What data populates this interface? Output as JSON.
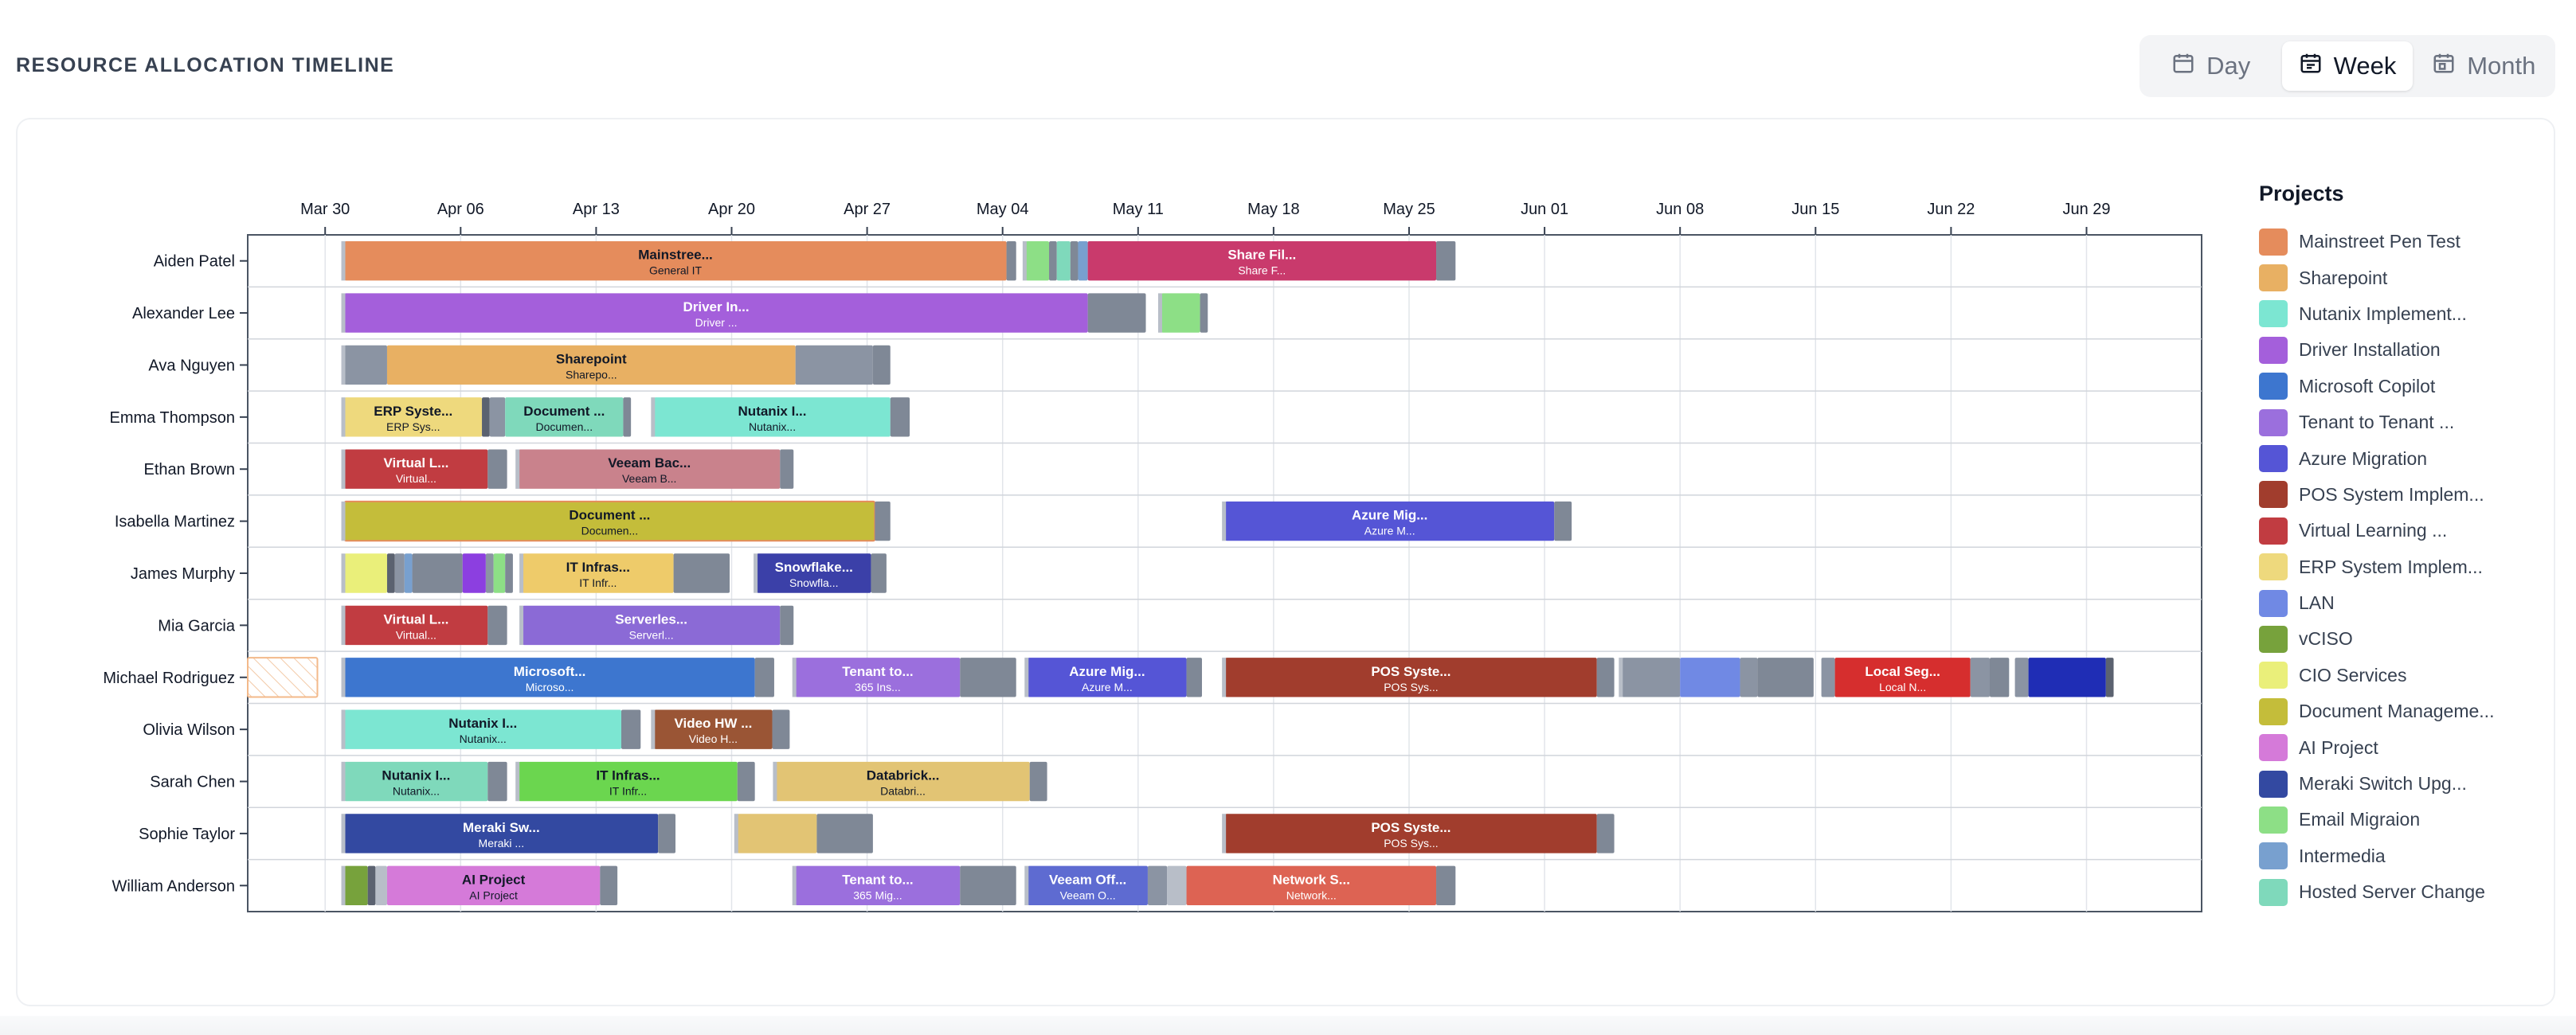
{
  "page_title": "RESOURCE ALLOCATION TIMELINE",
  "view_toggle": {
    "day": "Day",
    "week": "Week",
    "month": "Month",
    "active": "week"
  },
  "legend": {
    "title": "Projects",
    "items": [
      {
        "label": "Mainstreet Pen Test",
        "color": "#e58c5c"
      },
      {
        "label": "Sharepoint",
        "color": "#e8b063"
      },
      {
        "label": "Nutanix Implement...",
        "color": "#7ce6d2"
      },
      {
        "label": "Driver Installation",
        "color": "#a45fdb"
      },
      {
        "label": "Microsoft Copilot",
        "color": "#3d76cf"
      },
      {
        "label": "Tenant to Tenant ...",
        "color": "#9b6fdd"
      },
      {
        "label": "Azure Migration",
        "color": "#5555d6"
      },
      {
        "label": "POS System Implem...",
        "color": "#a13d2d"
      },
      {
        "label": "Virtual Learning ...",
        "color": "#c13c41"
      },
      {
        "label": "ERP System Implem...",
        "color": "#eed97d"
      },
      {
        "label": "LAN",
        "color": "#7089e4"
      },
      {
        "label": "vCISO",
        "color": "#77a23c"
      },
      {
        "label": "CIO Services",
        "color": "#eaef7a"
      },
      {
        "label": "Document Manageme...",
        "color": "#c4bd3a"
      },
      {
        "label": "AI Project",
        "color": "#d57ad9"
      },
      {
        "label": "Meraki Switch Upg...",
        "color": "#3349a1"
      },
      {
        "label": "Email Migraion",
        "color": "#8ddf86"
      },
      {
        "label": "Intermedia",
        "color": "#78a0cf"
      },
      {
        "label": "Hosted Server Change",
        "color": "#7fd9bb"
      }
    ]
  },
  "chart_data": {
    "type": "gantt",
    "x_axis": {
      "ticks": [
        "Mar 30",
        "Apr 06",
        "Apr 13",
        "Apr 20",
        "Apr 27",
        "May 04",
        "May 11",
        "May 18",
        "May 25",
        "Jun 01",
        "Jun 08",
        "Jun 15",
        "Jun 22",
        "Jun 29"
      ],
      "range": [
        "Mar 26",
        "Jul 06"
      ]
    },
    "rows": [
      "Aiden Patel",
      "Alexander Lee",
      "Ava Nguyen",
      "Emma Thompson",
      "Ethan Brown",
      "Isabella Martinez",
      "James Murphy",
      "Mia Garcia",
      "Michael Rodriguez",
      "Olivia Wilson",
      "Sarah Chen",
      "Sophie Taylor",
      "William Anderson"
    ],
    "tasks": [
      {
        "row": 0,
        "start": 5.0,
        "end": 39.2,
        "color": "#e58c5c",
        "title": "Mainstree...",
        "subtitle": "General IT"
      },
      {
        "row": 0,
        "start": 39.2,
        "end": 39.7,
        "color": "#7f8896"
      },
      {
        "row": 0,
        "start": 40.2,
        "end": 41.4,
        "color": "#8ddf86"
      },
      {
        "row": 0,
        "start": 41.4,
        "end": 41.8,
        "color": "#7f8896"
      },
      {
        "row": 0,
        "start": 41.8,
        "end": 42.5,
        "color": "#7fd9bb"
      },
      {
        "row": 0,
        "start": 42.5,
        "end": 42.9,
        "color": "#7f8896"
      },
      {
        "row": 0,
        "start": 42.9,
        "end": 43.4,
        "color": "#78a0cf"
      },
      {
        "row": 0,
        "start": 43.4,
        "end": 61.4,
        "color": "#c93a6c",
        "title": "Share Fil...",
        "subtitle": "Share F..."
      },
      {
        "row": 0,
        "start": 61.4,
        "end": 62.4,
        "color": "#7f8896"
      },
      {
        "row": 1,
        "start": 5.0,
        "end": 43.4,
        "color": "#a45fdb",
        "title": "Driver In...",
        "subtitle": "Driver ..."
      },
      {
        "row": 1,
        "start": 43.4,
        "end": 46.4,
        "color": "#7f8896"
      },
      {
        "row": 1,
        "start": 47.2,
        "end": 49.2,
        "color": "#8ddf86"
      },
      {
        "row": 1,
        "start": 49.2,
        "end": 49.6,
        "color": "#7f8896"
      },
      {
        "row": 2,
        "start": 5.0,
        "end": 7.2,
        "color": "#8b94a3"
      },
      {
        "row": 2,
        "start": 7.2,
        "end": 28.3,
        "color": "#e8b063",
        "title": "Sharepoint",
        "subtitle": "Sharepo..."
      },
      {
        "row": 2,
        "start": 28.3,
        "end": 32.3,
        "color": "#8b94a3"
      },
      {
        "row": 2,
        "start": 32.3,
        "end": 33.2,
        "color": "#7f8896"
      },
      {
        "row": 3,
        "start": 5.0,
        "end": 12.1,
        "color": "#eed97d",
        "title": "ERP Syste...",
        "subtitle": "ERP Sys..."
      },
      {
        "row": 3,
        "start": 12.1,
        "end": 12.5,
        "color": "#5b6270"
      },
      {
        "row": 3,
        "start": 12.5,
        "end": 13.3,
        "color": "#8b94a3"
      },
      {
        "row": 3,
        "start": 13.3,
        "end": 19.4,
        "color": "#7fd9bb",
        "title": "Document ...",
        "subtitle": "Documen..."
      },
      {
        "row": 3,
        "start": 19.4,
        "end": 19.8,
        "color": "#7f8896"
      },
      {
        "row": 3,
        "start": 21.0,
        "end": 33.2,
        "color": "#7ce6d2",
        "title": "Nutanix I...",
        "subtitle": "Nutanix..."
      },
      {
        "row": 3,
        "start": 33.2,
        "end": 34.2,
        "color": "#7f8896"
      },
      {
        "row": 4,
        "start": 5.0,
        "end": 12.4,
        "color": "#c13c41",
        "title": "Virtual L...",
        "subtitle": "Virtual..."
      },
      {
        "row": 4,
        "start": 12.4,
        "end": 13.4,
        "color": "#7f8896"
      },
      {
        "row": 4,
        "start": 14.0,
        "end": 27.5,
        "color": "#c9828c",
        "title": "Veeam Bac...",
        "subtitle": "Veeam B..."
      },
      {
        "row": 4,
        "start": 27.5,
        "end": 28.2,
        "color": "#7f8896"
      },
      {
        "row": 5,
        "start": 5.0,
        "end": 32.4,
        "color": "#c4bd3a",
        "title": "Document ...",
        "subtitle": "Documen...",
        "outlined": true
      },
      {
        "row": 5,
        "start": 32.4,
        "end": 33.2,
        "color": "#7f8896"
      },
      {
        "row": 5,
        "start": 50.5,
        "end": 67.5,
        "color": "#5555d6",
        "title": "Azure Mig...",
        "subtitle": "Azure M..."
      },
      {
        "row": 5,
        "start": 67.5,
        "end": 68.4,
        "color": "#7f8896"
      },
      {
        "row": 6,
        "start": 5.0,
        "end": 7.2,
        "color": "#eaef7a"
      },
      {
        "row": 6,
        "start": 7.2,
        "end": 7.6,
        "color": "#5b6270"
      },
      {
        "row": 6,
        "start": 7.6,
        "end": 8.1,
        "color": "#8b94a3"
      },
      {
        "row": 6,
        "start": 8.1,
        "end": 8.5,
        "color": "#78a0cf"
      },
      {
        "row": 6,
        "start": 8.5,
        "end": 11.1,
        "color": "#7f8896"
      },
      {
        "row": 6,
        "start": 11.1,
        "end": 12.3,
        "color": "#8c3fe0"
      },
      {
        "row": 6,
        "start": 12.3,
        "end": 12.7,
        "color": "#8b94a3"
      },
      {
        "row": 6,
        "start": 12.7,
        "end": 13.3,
        "color": "#8ddf86"
      },
      {
        "row": 6,
        "start": 13.3,
        "end": 13.7,
        "color": "#7f8896"
      },
      {
        "row": 6,
        "start": 14.2,
        "end": 22.0,
        "color": "#eecb6a",
        "title": "IT Infras...",
        "subtitle": "IT Infr..."
      },
      {
        "row": 6,
        "start": 22.0,
        "end": 24.9,
        "color": "#7f8896"
      },
      {
        "row": 6,
        "start": 26.3,
        "end": 32.2,
        "color": "#3b40a8",
        "title": "Snowflake...",
        "subtitle": "Snowfla..."
      },
      {
        "row": 6,
        "start": 32.2,
        "end": 33.0,
        "color": "#7f8896"
      },
      {
        "row": 7,
        "start": 5.0,
        "end": 12.4,
        "color": "#c13c41",
        "title": "Virtual L...",
        "subtitle": "Virtual..."
      },
      {
        "row": 7,
        "start": 12.4,
        "end": 13.4,
        "color": "#7f8896"
      },
      {
        "row": 7,
        "start": 14.2,
        "end": 27.5,
        "color": "#8b6ad6",
        "title": "Serverles...",
        "subtitle": "Serverl..."
      },
      {
        "row": 7,
        "start": 27.5,
        "end": 28.2,
        "color": "#7f8896"
      },
      {
        "row": 8,
        "start": 0.0,
        "end": 3.6,
        "color": "#ffffff",
        "hatched": true
      },
      {
        "row": 8,
        "start": 5.0,
        "end": 26.2,
        "color": "#3d76cf",
        "title": "Microsoft...",
        "subtitle": "Microso..."
      },
      {
        "row": 8,
        "start": 26.2,
        "end": 27.2,
        "color": "#7f8896"
      },
      {
        "row": 8,
        "start": 28.3,
        "end": 36.8,
        "color": "#9b6fdd",
        "title": "Tenant to...",
        "subtitle": "365 Ins..."
      },
      {
        "row": 8,
        "start": 36.8,
        "end": 39.7,
        "color": "#7f8896"
      },
      {
        "row": 8,
        "start": 40.3,
        "end": 48.5,
        "color": "#5555d6",
        "title": "Azure Mig...",
        "subtitle": "Azure M..."
      },
      {
        "row": 8,
        "start": 48.5,
        "end": 49.3,
        "color": "#7f8896"
      },
      {
        "row": 8,
        "start": 50.5,
        "end": 69.7,
        "color": "#a13d2d",
        "title": "POS Syste...",
        "subtitle": "POS Sys..."
      },
      {
        "row": 8,
        "start": 69.7,
        "end": 70.6,
        "color": "#7f8896"
      },
      {
        "row": 8,
        "start": 71.0,
        "end": 74.0,
        "color": "#8b94a3"
      },
      {
        "row": 8,
        "start": 74.0,
        "end": 77.1,
        "color": "#7089e4"
      },
      {
        "row": 8,
        "start": 77.1,
        "end": 78.0,
        "color": "#8b94a3"
      },
      {
        "row": 8,
        "start": 78.0,
        "end": 80.9,
        "color": "#7f8896"
      },
      {
        "row": 8,
        "start": 81.3,
        "end": 82.0,
        "color": "#8b94a3"
      },
      {
        "row": 8,
        "start": 82.0,
        "end": 89.0,
        "color": "#d62e2e",
        "title": "Local Seg...",
        "subtitle": "Local N..."
      },
      {
        "row": 8,
        "start": 89.0,
        "end": 90.0,
        "color": "#8b94a3"
      },
      {
        "row": 8,
        "start": 90.0,
        "end": 91.0,
        "color": "#7f8896"
      },
      {
        "row": 8,
        "start": 91.3,
        "end": 92.0,
        "color": "#8b94a3"
      },
      {
        "row": 8,
        "start": 92.0,
        "end": 96.0,
        "color": "#1f2db5"
      },
      {
        "row": 8,
        "start": 96.0,
        "end": 96.4,
        "color": "#5b6270"
      },
      {
        "row": 9,
        "start": 5.0,
        "end": 19.3,
        "color": "#7ce6d2",
        "title": "Nutanix I...",
        "subtitle": "Nutanix..."
      },
      {
        "row": 9,
        "start": 19.3,
        "end": 20.3,
        "color": "#7f8896"
      },
      {
        "row": 9,
        "start": 21.0,
        "end": 27.1,
        "color": "#9a5535",
        "title": "Video HW ...",
        "subtitle": "Video H..."
      },
      {
        "row": 9,
        "start": 27.1,
        "end": 28.0,
        "color": "#7f8896"
      },
      {
        "row": 10,
        "start": 5.0,
        "end": 12.4,
        "color": "#7fd9bb",
        "title": "Nutanix I...",
        "subtitle": "Nutanix..."
      },
      {
        "row": 10,
        "start": 12.4,
        "end": 13.4,
        "color": "#7f8896"
      },
      {
        "row": 10,
        "start": 14.0,
        "end": 25.3,
        "color": "#6bd64f",
        "title": "IT Infras...",
        "subtitle": "IT Infr..."
      },
      {
        "row": 10,
        "start": 25.3,
        "end": 26.2,
        "color": "#7f8896"
      },
      {
        "row": 10,
        "start": 27.3,
        "end": 40.4,
        "color": "#e2c474",
        "title": "Databrick...",
        "subtitle": "Databri..."
      },
      {
        "row": 10,
        "start": 40.4,
        "end": 41.3,
        "color": "#7f8896"
      },
      {
        "row": 11,
        "start": 5.0,
        "end": 21.2,
        "color": "#3349a1",
        "title": "Meraki Sw...",
        "subtitle": "Meraki ..."
      },
      {
        "row": 11,
        "start": 21.2,
        "end": 22.1,
        "color": "#7f8896"
      },
      {
        "row": 11,
        "start": 25.3,
        "end": 29.4,
        "color": "#e2c474"
      },
      {
        "row": 11,
        "start": 29.4,
        "end": 32.3,
        "color": "#7f8896"
      },
      {
        "row": 11,
        "start": 50.5,
        "end": 69.7,
        "color": "#a13d2d",
        "title": "POS Syste...",
        "subtitle": "POS Sys..."
      },
      {
        "row": 11,
        "start": 69.7,
        "end": 70.6,
        "color": "#7f8896"
      },
      {
        "row": 12,
        "start": 5.0,
        "end": 6.2,
        "color": "#77a23c"
      },
      {
        "row": 12,
        "start": 6.2,
        "end": 6.6,
        "color": "#5b6270"
      },
      {
        "row": 12,
        "start": 6.6,
        "end": 7.2,
        "color": "#b8bec8"
      },
      {
        "row": 12,
        "start": 7.2,
        "end": 18.2,
        "color": "#d57ad9",
        "title": "AI Project",
        "subtitle": "AI Project"
      },
      {
        "row": 12,
        "start": 18.2,
        "end": 19.1,
        "color": "#7f8896"
      },
      {
        "row": 12,
        "start": 28.3,
        "end": 36.8,
        "color": "#9b6fdd",
        "title": "Tenant to...",
        "subtitle": "365 Mig..."
      },
      {
        "row": 12,
        "start": 36.8,
        "end": 39.7,
        "color": "#7f8896"
      },
      {
        "row": 12,
        "start": 40.3,
        "end": 46.5,
        "color": "#5e6bd1",
        "title": "Veeam Off...",
        "subtitle": "Veeam O..."
      },
      {
        "row": 12,
        "start": 46.5,
        "end": 47.5,
        "color": "#8b94a3"
      },
      {
        "row": 12,
        "start": 47.5,
        "end": 48.5,
        "color": "#b8bec8"
      },
      {
        "row": 12,
        "start": 48.5,
        "end": 61.4,
        "color": "#dd6353",
        "title": "Network S...",
        "subtitle": "Network..."
      },
      {
        "row": 12,
        "start": 61.4,
        "end": 62.4,
        "color": "#7f8896"
      }
    ]
  }
}
